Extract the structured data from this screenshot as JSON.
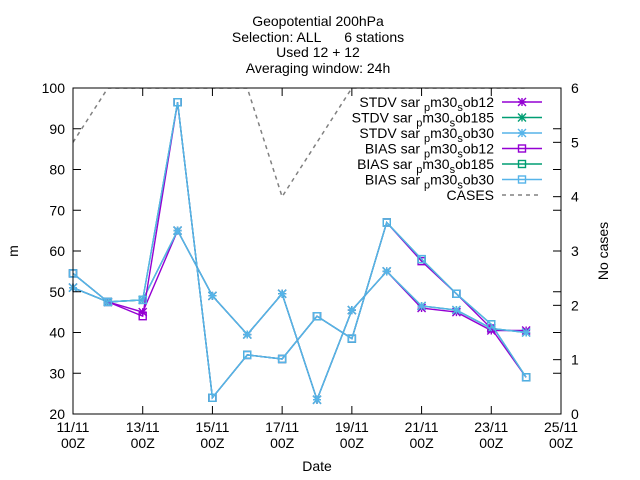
{
  "chart_data": {
    "type": "line",
    "title_lines": [
      "Geopotential 200hPa",
      "Selection: ALL      6 stations",
      "Used 12 + 12",
      "Averaging window: 24h"
    ],
    "xlabel": "Date",
    "ylabel": "m",
    "y2label": "No cases",
    "xlim": [
      0,
      14
    ],
    "ylim": [
      20,
      100
    ],
    "y2lim": [
      0,
      6
    ],
    "grid": false,
    "legend_position": "top-right",
    "x_ticks": [
      {
        "x": 0,
        "line1": "11/11",
        "line2": "00Z"
      },
      {
        "x": 2,
        "line1": "13/11",
        "line2": "00Z"
      },
      {
        "x": 4,
        "line1": "15/11",
        "line2": "00Z"
      },
      {
        "x": 6,
        "line1": "17/11",
        "line2": "00Z"
      },
      {
        "x": 8,
        "line1": "19/11",
        "line2": "00Z"
      },
      {
        "x": 10,
        "line1": "21/11",
        "line2": "00Z"
      },
      {
        "x": 12,
        "line1": "23/11",
        "line2": "00Z"
      },
      {
        "x": 14,
        "line1": "25/11",
        "line2": "00Z"
      }
    ],
    "y_ticks": [
      "20",
      "30",
      "40",
      "50",
      "60",
      "70",
      "80",
      "90",
      "100"
    ],
    "y2_ticks": [
      "0",
      "1",
      "2",
      "3",
      "4",
      "5",
      "6"
    ],
    "x": [
      0,
      1,
      2,
      3,
      4,
      5,
      6,
      7,
      8,
      9,
      10,
      11,
      12,
      13
    ],
    "series": [
      {
        "name": "STDV sar_pm30_sob12",
        "legend_base": "STDV sar",
        "legend_sub1": "p",
        "legend_mid": "m30",
        "legend_sub2": "s",
        "legend_end": "ob12",
        "color": "#9400d3",
        "marker": "star",
        "axis": "y",
        "values": [
          51,
          47.5,
          45,
          65,
          49,
          39.5,
          49.5,
          23.5,
          45.5,
          55,
          46,
          45,
          40.5,
          40.5
        ]
      },
      {
        "name": "STDV sar_pm30_sob185",
        "legend_base": "STDV sar",
        "legend_sub1": "p",
        "legend_mid": "m30",
        "legend_sub2": "s",
        "legend_end": "ob185",
        "color": "#009e73",
        "marker": "star",
        "axis": "y",
        "values": [
          51,
          47.5,
          48,
          65,
          49,
          39.5,
          49.5,
          23.5,
          45.5,
          55,
          46.5,
          45.5,
          41,
          40
        ]
      },
      {
        "name": "STDV sar_pm30_sob30",
        "legend_base": "STDV sar",
        "legend_sub1": "p",
        "legend_mid": "m30",
        "legend_sub2": "s",
        "legend_end": "ob30",
        "color": "#56b4e9",
        "marker": "star",
        "axis": "y",
        "values": [
          51,
          47.5,
          48,
          65,
          49,
          39.5,
          49.5,
          23.5,
          45.5,
          55,
          46.5,
          45.5,
          41,
          40
        ]
      },
      {
        "name": "BIAS sar_pm30_sob12",
        "legend_base": "BIAS sar",
        "legend_sub1": "p",
        "legend_mid": "m30",
        "legend_sub2": "s",
        "legend_end": "ob12",
        "color": "#9400d3",
        "marker": "square",
        "axis": "y",
        "values": [
          54.5,
          47.5,
          44,
          96.5,
          24,
          34.5,
          33.5,
          44,
          38.5,
          67,
          57.5,
          49.5,
          41,
          29
        ]
      },
      {
        "name": "BIAS sar_pm30_sob185",
        "legend_base": "BIAS sar",
        "legend_sub1": "p",
        "legend_mid": "m30",
        "legend_sub2": "s",
        "legend_end": "ob185",
        "color": "#009e73",
        "marker": "square",
        "axis": "y",
        "values": [
          54.5,
          47.5,
          48,
          96.5,
          24,
          34.5,
          33.5,
          44,
          38.5,
          67,
          58,
          49.5,
          42,
          29
        ]
      },
      {
        "name": "BIAS sar_pm30_sob30",
        "legend_base": "BIAS sar",
        "legend_sub1": "p",
        "legend_mid": "m30",
        "legend_sub2": "s",
        "legend_end": "ob30",
        "color": "#56b4e9",
        "marker": "square",
        "axis": "y",
        "values": [
          54.5,
          47.5,
          48,
          96.5,
          24,
          34.5,
          33.5,
          44,
          38.5,
          67,
          58,
          49.5,
          42,
          29
        ]
      },
      {
        "name": "CASES",
        "legend_base": "CASES",
        "color": "#808080",
        "marker": "none",
        "dashed": true,
        "axis": "y2",
        "values": [
          5,
          6,
          6,
          6,
          6,
          6,
          4,
          5,
          6,
          6,
          6,
          6,
          6,
          6
        ]
      }
    ]
  }
}
